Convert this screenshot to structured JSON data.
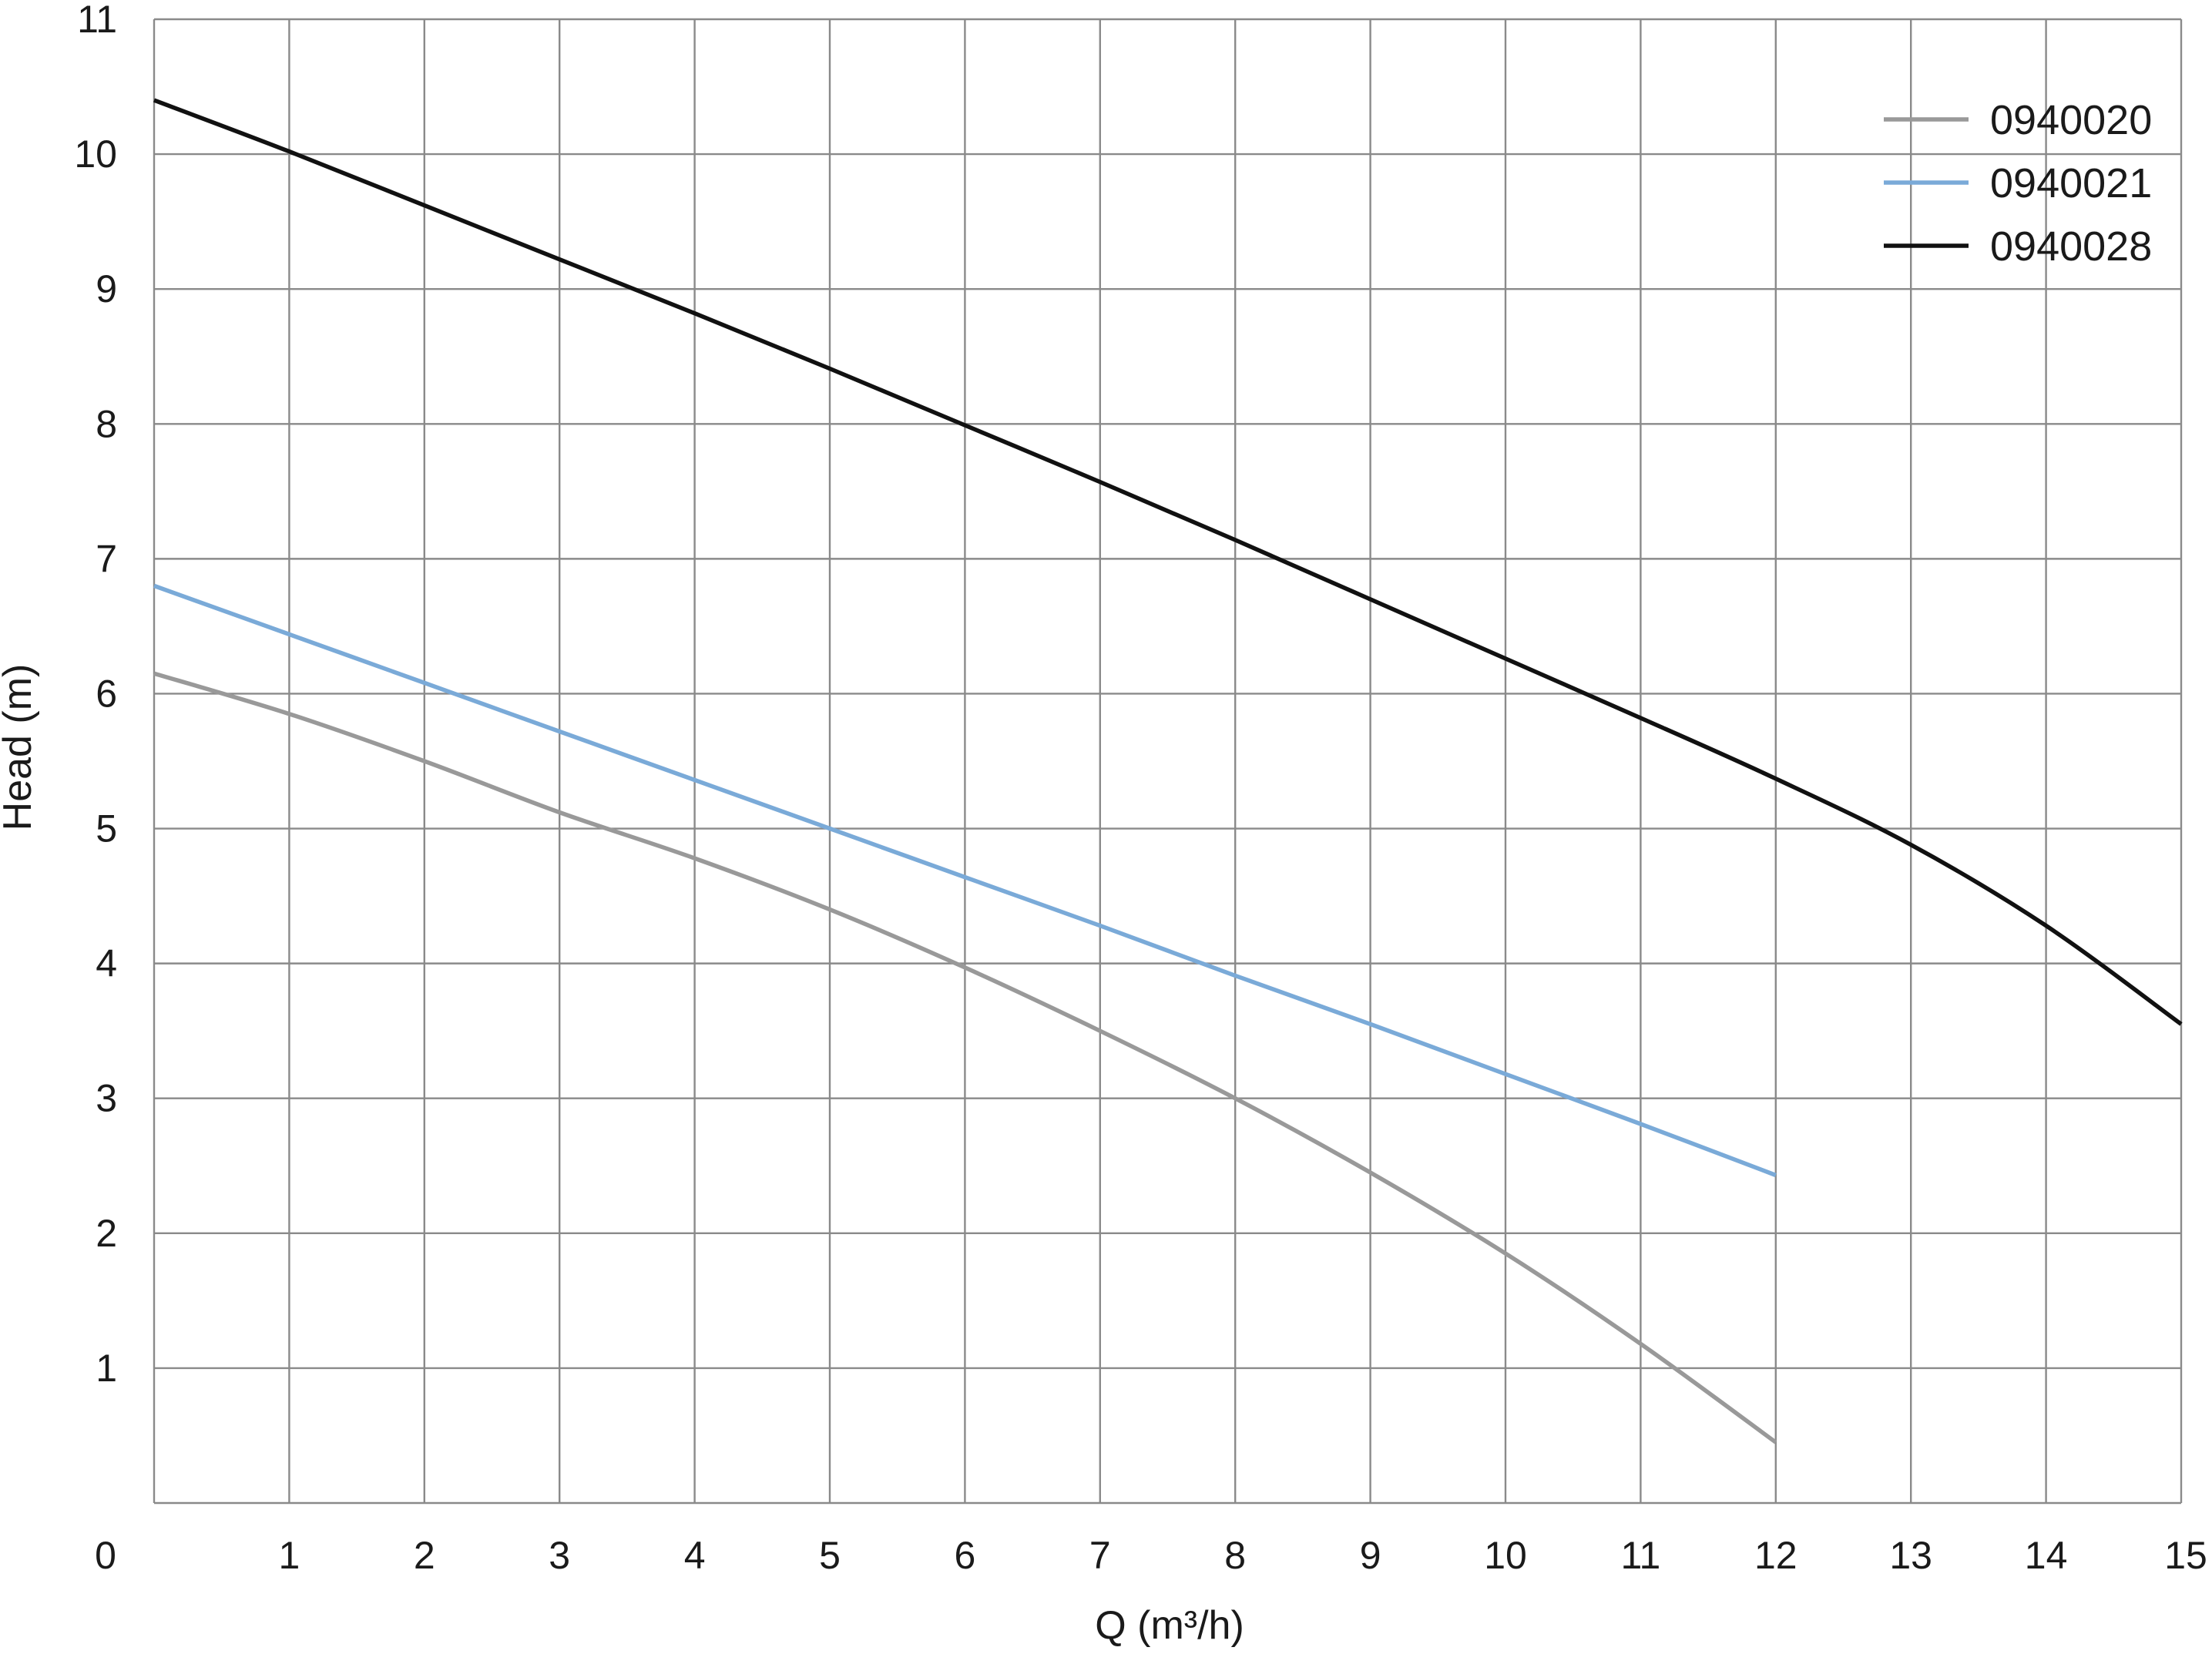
{
  "chart_data": {
    "type": "line",
    "title": "",
    "xlabel": "Q (m³/h)",
    "ylabel": "Head (m)",
    "xlim": [
      0,
      15
    ],
    "ylim": [
      0,
      11
    ],
    "xticks": [
      "0",
      "1",
      "2",
      "3",
      "4",
      "5",
      "6",
      "7",
      "8",
      "9",
      "10",
      "11",
      "12",
      "13",
      "14",
      "15"
    ],
    "yticks": [
      "1",
      "2",
      "3",
      "4",
      "5",
      "6",
      "7",
      "8",
      "9",
      "10",
      "11"
    ],
    "grid": true,
    "legend_position": "top-right",
    "series": [
      {
        "name": "0940020",
        "color": "#999999",
        "x": [
          0,
          1,
          2,
          3,
          4,
          5,
          6,
          7,
          8,
          9,
          10,
          11,
          12
        ],
        "y": [
          6.15,
          5.85,
          5.5,
          5.12,
          4.78,
          4.4,
          3.97,
          3.5,
          3.0,
          2.45,
          1.85,
          1.18,
          0.45
        ]
      },
      {
        "name": "0940021",
        "color": "#7aaad8",
        "x": [
          0,
          1,
          2,
          3,
          4,
          5,
          6,
          7,
          8,
          9,
          10,
          11,
          12
        ],
        "y": [
          6.8,
          6.44,
          6.08,
          5.72,
          5.36,
          5.0,
          4.64,
          4.28,
          3.91,
          3.55,
          3.18,
          2.81,
          2.43
        ]
      },
      {
        "name": "0940028",
        "color": "#111111",
        "x": [
          0,
          1,
          2,
          3,
          4,
          5,
          6,
          7,
          8,
          9,
          10,
          11,
          12,
          13,
          14,
          15
        ],
        "y": [
          10.4,
          10.02,
          9.62,
          9.22,
          8.82,
          8.41,
          7.99,
          7.57,
          7.14,
          6.7,
          6.26,
          5.82,
          5.37,
          4.88,
          4.28,
          3.55
        ]
      }
    ]
  }
}
